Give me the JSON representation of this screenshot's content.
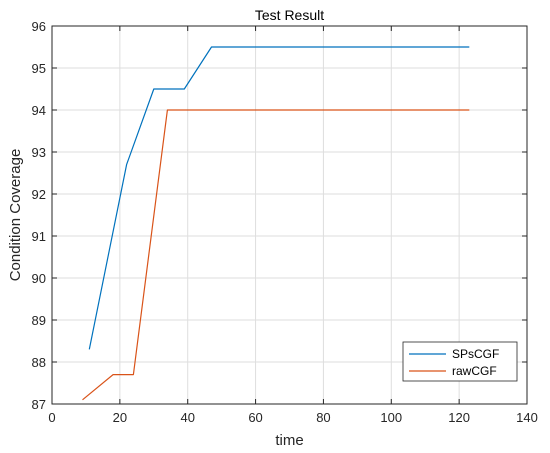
{
  "chart_data": {
    "type": "line",
    "title": "Test Result",
    "xlabel": "time",
    "ylabel": "Condition Coverage",
    "xlim": [
      0,
      140
    ],
    "ylim": [
      87,
      96
    ],
    "xticks": [
      "0",
      "20",
      "40",
      "60",
      "80",
      "100",
      "120",
      "140"
    ],
    "yticks": [
      "87",
      "88",
      "89",
      "90",
      "91",
      "92",
      "93",
      "94",
      "95",
      "96"
    ],
    "grid": true,
    "legend_position": "bottom-right",
    "series": [
      {
        "name": "SPsCGF",
        "color": "#0072bd",
        "x": [
          11,
          22,
          30,
          39,
          47,
          123
        ],
        "y": [
          88.3,
          92.7,
          94.5,
          94.5,
          95.5,
          95.5
        ]
      },
      {
        "name": "rawCGF",
        "color": "#d95319",
        "x": [
          9,
          18,
          24,
          34,
          123
        ],
        "y": [
          87.1,
          87.7,
          87.7,
          94.0,
          94.0
        ]
      }
    ]
  }
}
